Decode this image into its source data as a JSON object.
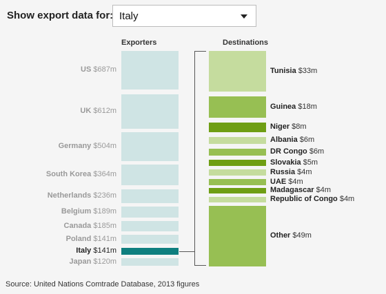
{
  "header": {
    "label": "Show export data for:"
  },
  "selector": {
    "value": "Italy"
  },
  "exporters_title": "Exporters",
  "destinations_title": "Destinations",
  "exporters": [
    {
      "name": "US",
      "value": "$687m"
    },
    {
      "name": "UK",
      "value": "$612m"
    },
    {
      "name": "Germany",
      "value": "$504m"
    },
    {
      "name": "South Korea",
      "value": "$364m"
    },
    {
      "name": "Netherlands",
      "value": "$236m"
    },
    {
      "name": "Belgium",
      "value": "$189m"
    },
    {
      "name": "Canada",
      "value": "$185m"
    },
    {
      "name": "Poland",
      "value": "$141m"
    },
    {
      "name": "Italy",
      "value": "$141m",
      "selected": true
    },
    {
      "name": "Japan",
      "value": "$120m"
    }
  ],
  "destinations": [
    {
      "name": "Tunisia",
      "value": "$33m",
      "color": "#c5dc9e"
    },
    {
      "name": "Guinea",
      "value": "$18m",
      "color": "#97bf53"
    },
    {
      "name": "Niger",
      "value": "$8m",
      "color": "#6f9e14"
    },
    {
      "name": "Albania",
      "value": "$6m",
      "color": "#c5dc9e"
    },
    {
      "name": "DR Congo",
      "value": "$6m",
      "color": "#97bf53"
    },
    {
      "name": "Slovakia",
      "value": "$5m",
      "color": "#6f9e14"
    },
    {
      "name": "Russia",
      "value": "$4m",
      "color": "#c5dc9e"
    },
    {
      "name": "UAE",
      "value": "$4m",
      "color": "#97bf53"
    },
    {
      "name": "Madagascar",
      "value": "$4m",
      "color": "#6f9e14"
    },
    {
      "name": "Republic of Congo",
      "value": "$4m",
      "color": "#c5dc9e"
    },
    {
      "name": "Other",
      "value": "$49m",
      "color": "#97bf53"
    }
  ],
  "source": "Source: United Nations Comtrade Database, 2013 figures"
}
